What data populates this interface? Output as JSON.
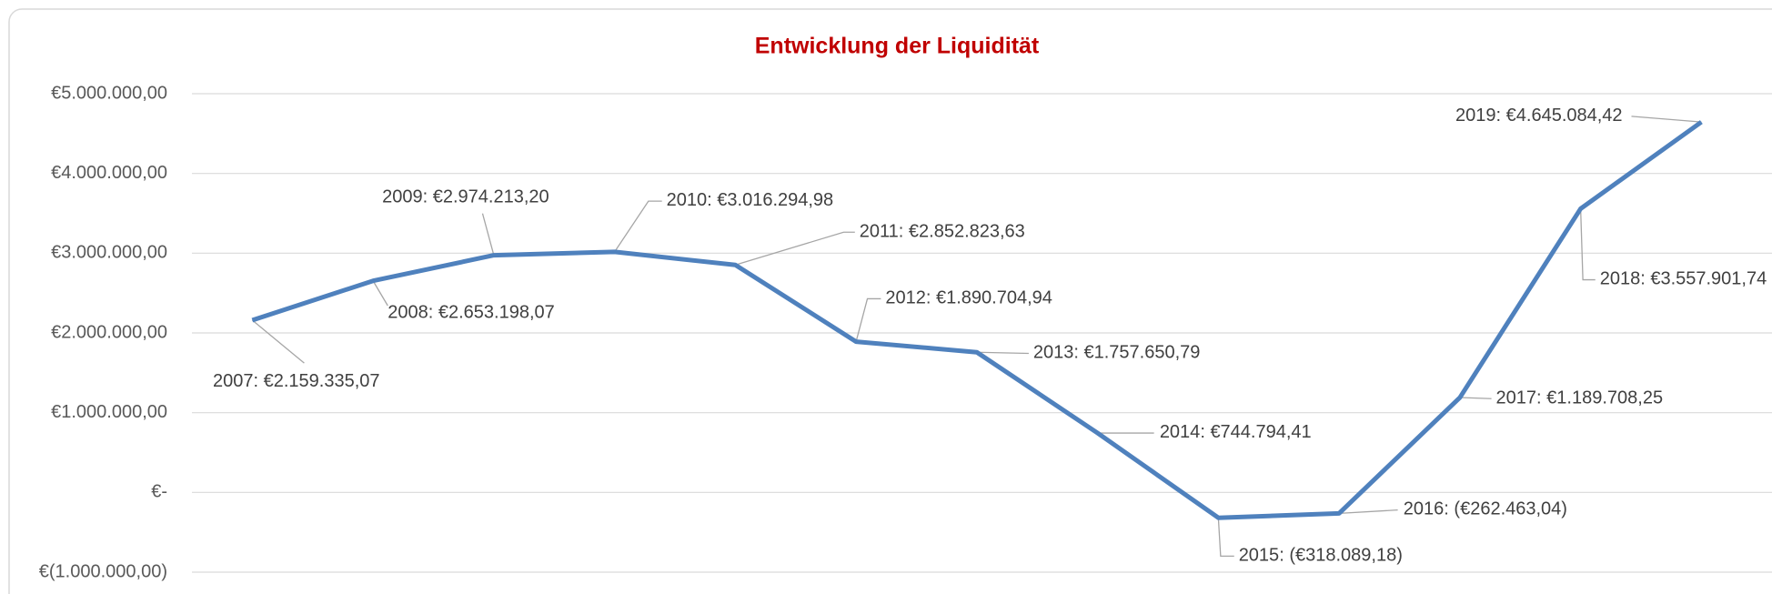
{
  "chart_data": {
    "type": "line",
    "title": "Entwicklung der Liquidität",
    "categories": [
      "2007",
      "2008",
      "2009",
      "2010",
      "2011",
      "2012",
      "2013",
      "2014",
      "2015",
      "2016",
      "2017",
      "2018",
      "2019"
    ],
    "series": [
      {
        "color": "#4f81bd",
        "values": [
          2159335.07,
          2653198.07,
          2974213.2,
          3016294.98,
          2852823.63,
          1890704.94,
          1757650.79,
          744794.41,
          -318089.18,
          -262463.04,
          1189708.25,
          3557901.74,
          4645084.42
        ],
        "value_labels": [
          "€2.159.335,07",
          "€2.653.198,07",
          "€2.974.213,20",
          "€3.016.294,98",
          "€2.852.823,63",
          "€1.890.704,94",
          "€1.757.650,79",
          "€744.794,41",
          "(€318.089,18)",
          "(€262.463,04)",
          "€1.189.708,25",
          "€3.557.901,74",
          "€4.645.084,42"
        ]
      }
    ],
    "data_label_separator": ": ",
    "ylim": [
      -1000000,
      5000000
    ],
    "yticks": [
      {
        "value": -1000000,
        "label": "€(1.000.000,00)"
      },
      {
        "value": 0,
        "label": "€-"
      },
      {
        "value": 1000000,
        "label": "€1.000.000,00"
      },
      {
        "value": 2000000,
        "label": "€2.000.000,00"
      },
      {
        "value": 3000000,
        "label": "€3.000.000,00"
      },
      {
        "value": 4000000,
        "label": "€4.000.000,00"
      },
      {
        "value": 5000000,
        "label": "€5.000.000,00"
      }
    ],
    "grid": true
  }
}
